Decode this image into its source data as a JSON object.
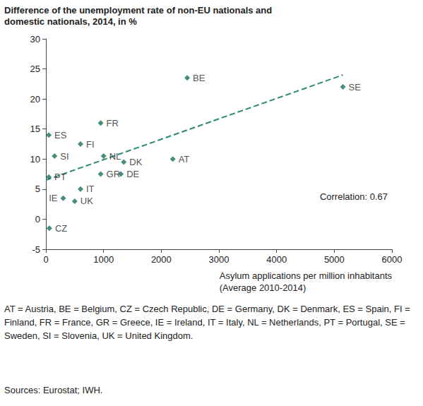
{
  "chart_data": {
    "type": "scatter",
    "title": "Difference of the unemployment rate of non-EU nationals and\ndomestic nationals, 2014, in %",
    "xlabel": "Asylum applications per million inhabitants\n(Average 2010-2014)",
    "labels": [
      "BE",
      "SE",
      "FR",
      "ES",
      "FI",
      "SI",
      "NL",
      "DK",
      "AT",
      "PT",
      "GR",
      "DE",
      "IT",
      "IE",
      "UK",
      "CZ"
    ],
    "x": [
      2450,
      5150,
      950,
      50,
      600,
      150,
      1000,
      1350,
      2200,
      50,
      950,
      1300,
      600,
      300,
      500,
      60
    ],
    "values": [
      23.5,
      22,
      16,
      14,
      12.5,
      10.5,
      10.5,
      9.5,
      10,
      7,
      7.5,
      7.5,
      5,
      3.5,
      3,
      -1.5
    ],
    "color": "#17705f",
    "marker": "diamond",
    "trend": {
      "x": [
        0,
        5150
      ],
      "values": [
        6.5,
        24
      ],
      "line_style": "dashed",
      "color": "#2a8a76"
    },
    "annotation": "Correlation: 0.67",
    "xlim": [
      0,
      6000
    ],
    "xticks": [
      0,
      1000,
      2000,
      3000,
      4000,
      5000,
      6000
    ],
    "ylim": [
      -5,
      30
    ],
    "yticks": [
      -5,
      0,
      5,
      10,
      15,
      20,
      25,
      30
    ],
    "grid": false,
    "footnote": "AT = Austria, BE = Belgium, CZ = Czech Republic, DE = Germany, DK = Denmark, ES = Spain, FI = Finland, FR = France, GR = Greece, IE = Ireland, IT = Italy, NL = Netherlands, PT = Portugal, SE = Sweden, SI = Slovenia, UK = United Kingdom.",
    "source": "Sources: Eurostat; IWH."
  }
}
